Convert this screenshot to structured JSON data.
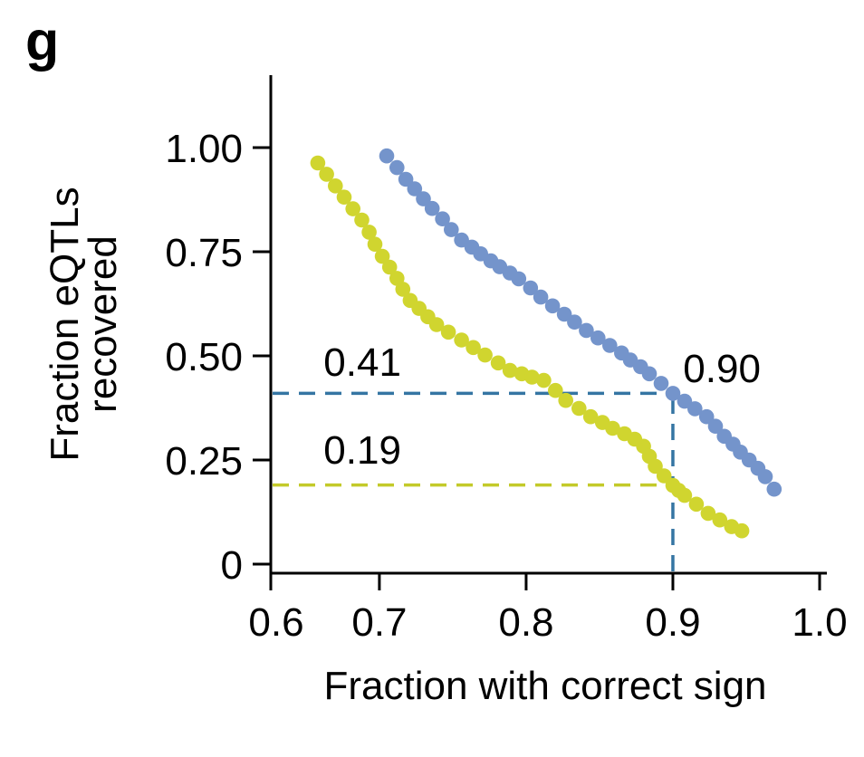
{
  "panel_label": "g",
  "chart_data": {
    "type": "scatter",
    "title": "",
    "xlabel": "Fraction with correct sign",
    "ylabel_line1": "Fraction eQTLs",
    "ylabel_line2": "recovered",
    "x_tick_values": [
      0.6,
      0.7,
      0.8,
      0.9,
      1.0
    ],
    "x_tick_labels": [
      "0.6",
      "0.7",
      "0.8",
      "0.9",
      "1.0"
    ],
    "y_tick_values": [
      0,
      0.25,
      0.5,
      0.75,
      1.0
    ],
    "y_tick_labels": [
      "0",
      "0.25",
      "0.50",
      "0.75",
      "1.00"
    ],
    "xlim": [
      0.626,
      1.005
    ],
    "ylim": [
      0,
      1.17
    ],
    "grid": false,
    "legend": "none",
    "axis_color": "#000000",
    "series": [
      {
        "name": "blue-curve",
        "color": "#7494CB",
        "point_radius": 8.3,
        "points": [
          [
            0.705,
            0.98
          ],
          [
            0.712,
            0.952
          ],
          [
            0.718,
            0.924
          ],
          [
            0.724,
            0.901
          ],
          [
            0.73,
            0.877
          ],
          [
            0.736,
            0.854
          ],
          [
            0.743,
            0.829
          ],
          [
            0.749,
            0.803
          ],
          [
            0.756,
            0.778
          ],
          [
            0.763,
            0.761
          ],
          [
            0.769,
            0.745
          ],
          [
            0.776,
            0.728
          ],
          [
            0.782,
            0.714
          ],
          [
            0.789,
            0.699
          ],
          [
            0.795,
            0.685
          ],
          [
            0.803,
            0.663
          ],
          [
            0.81,
            0.641
          ],
          [
            0.818,
            0.62
          ],
          [
            0.826,
            0.6
          ],
          [
            0.833,
            0.581
          ],
          [
            0.841,
            0.561
          ],
          [
            0.849,
            0.543
          ],
          [
            0.857,
            0.525
          ],
          [
            0.865,
            0.507
          ],
          [
            0.871,
            0.49
          ],
          [
            0.878,
            0.474
          ],
          [
            0.884,
            0.457
          ],
          [
            0.892,
            0.434
          ],
          [
            0.9,
            0.41
          ],
          [
            0.908,
            0.391
          ],
          [
            0.915,
            0.373
          ],
          [
            0.923,
            0.354
          ],
          [
            0.929,
            0.331
          ],
          [
            0.935,
            0.307
          ],
          [
            0.941,
            0.288
          ],
          [
            0.946,
            0.269
          ],
          [
            0.952,
            0.25
          ],
          [
            0.958,
            0.23
          ],
          [
            0.963,
            0.21
          ],
          [
            0.969,
            0.18
          ]
        ]
      },
      {
        "name": "yellow-curve",
        "color": "#D0D52F",
        "point_radius": 8.3,
        "points": [
          [
            0.658,
            0.963
          ],
          [
            0.664,
            0.936
          ],
          [
            0.67,
            0.908
          ],
          [
            0.676,
            0.881
          ],
          [
            0.682,
            0.853
          ],
          [
            0.688,
            0.826
          ],
          [
            0.693,
            0.797
          ],
          [
            0.697,
            0.768
          ],
          [
            0.702,
            0.739
          ],
          [
            0.707,
            0.713
          ],
          [
            0.712,
            0.686
          ],
          [
            0.716,
            0.66
          ],
          [
            0.721,
            0.633
          ],
          [
            0.727,
            0.614
          ],
          [
            0.733,
            0.594
          ],
          [
            0.739,
            0.575
          ],
          [
            0.747,
            0.557
          ],
          [
            0.756,
            0.538
          ],
          [
            0.764,
            0.52
          ],
          [
            0.772,
            0.502
          ],
          [
            0.781,
            0.483
          ],
          [
            0.789,
            0.465
          ],
          [
            0.797,
            0.457
          ],
          [
            0.804,
            0.449
          ],
          [
            0.812,
            0.441
          ],
          [
            0.82,
            0.417
          ],
          [
            0.827,
            0.393
          ],
          [
            0.836,
            0.374
          ],
          [
            0.844,
            0.354
          ],
          [
            0.852,
            0.34
          ],
          [
            0.859,
            0.326
          ],
          [
            0.867,
            0.313
          ],
          [
            0.874,
            0.3
          ],
          [
            0.88,
            0.283
          ],
          [
            0.884,
            0.259
          ],
          [
            0.888,
            0.235
          ],
          [
            0.894,
            0.212
          ],
          [
            0.9,
            0.189
          ],
          [
            0.904,
            0.177
          ],
          [
            0.908,
            0.165
          ],
          [
            0.916,
            0.144
          ],
          [
            0.924,
            0.122
          ],
          [
            0.932,
            0.106
          ],
          [
            0.94,
            0.09
          ],
          [
            0.947,
            0.08
          ]
        ]
      }
    ],
    "guides": [
      {
        "orient": "h",
        "y": 0.41,
        "x0": 0.626,
        "x1": 0.9,
        "color": "#3575A3",
        "name": "blue-guide-horizontal"
      },
      {
        "orient": "h",
        "y": 0.19,
        "x0": 0.626,
        "x1": 0.9,
        "color": "#C3CA2A",
        "name": "yellow-guide-horizontal"
      },
      {
        "orient": "v",
        "x": 0.9,
        "y0": 0,
        "y1": 0.41,
        "color": "#3575A3",
        "name": "blue-guide-vertical"
      }
    ],
    "annotations": [
      {
        "text": "0.41",
        "x": 0.662,
        "y": 0.452
      },
      {
        "text": "0.19",
        "x": 0.662,
        "y": 0.241
      },
      {
        "text": "0.90",
        "x": 0.907,
        "y": 0.437
      }
    ]
  }
}
